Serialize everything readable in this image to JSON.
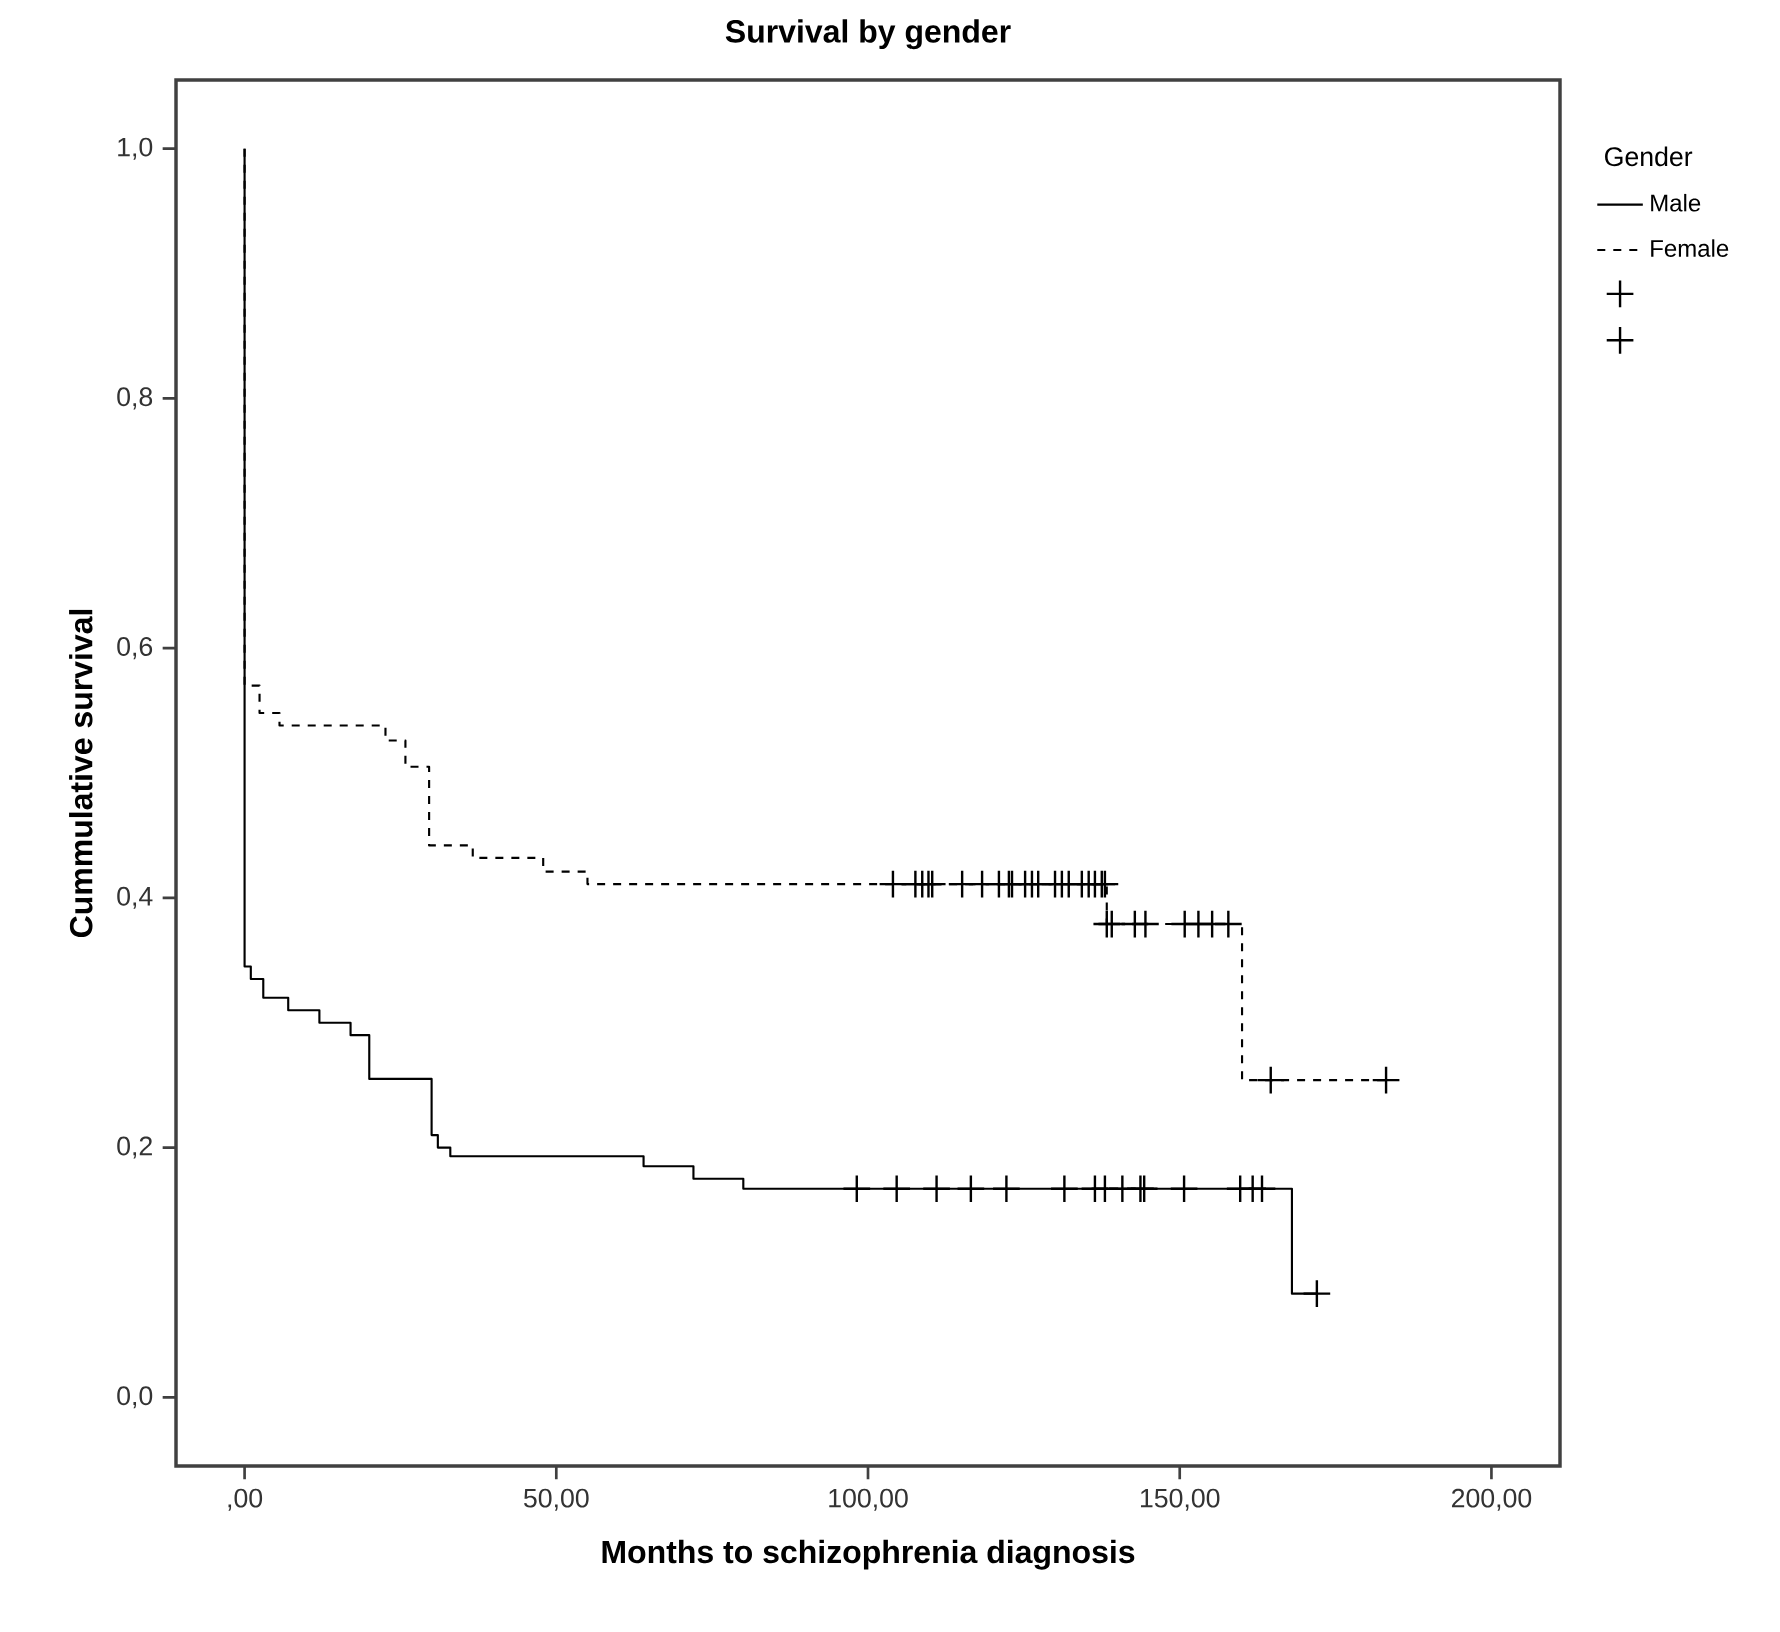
{
  "chart_data": {
    "type": "step",
    "title": "Survival by gender",
    "xlabel": "Months to schizophrenia diagnosis",
    "ylabel": "Cummulative survival",
    "legend_title": "Gender",
    "legend": "right",
    "grid": false,
    "xlim": [
      -11,
      211
    ],
    "ylim": [
      -0.055,
      1.055
    ],
    "xticks": [
      {
        "value": 0,
        "label": ",00"
      },
      {
        "value": 50,
        "label": "50,00"
      },
      {
        "value": 100,
        "label": "100,00"
      },
      {
        "value": 150,
        "label": "150,00"
      },
      {
        "value": 200,
        "label": "200,00"
      }
    ],
    "yticks": [
      {
        "value": 0,
        "label": "0,0"
      },
      {
        "value": 0.2,
        "label": "0,2"
      },
      {
        "value": 0.4,
        "label": "0,4"
      },
      {
        "value": 0.6,
        "label": "0,6"
      },
      {
        "value": 0.8,
        "label": "0,8"
      },
      {
        "value": 1,
        "label": "1,0"
      }
    ],
    "series": [
      {
        "name": "Male",
        "color": "#000000",
        "line_style": "solid",
        "marker": "none",
        "x": [
          0,
          0,
          1,
          3,
          7,
          12,
          17,
          20,
          30,
          31,
          33,
          64,
          72,
          80,
          168,
          172
        ],
        "values": [
          1,
          0.345,
          0.335,
          0.32,
          0.31,
          0.3,
          0.29,
          0.255,
          0.21,
          0.2,
          0.193,
          0.185,
          0.175,
          0.167,
          0.083,
          0.083
        ]
      },
      {
        "name": "Female",
        "color": "#000000",
        "line_style": "dashed",
        "marker": "none",
        "x": [
          0,
          0,
          2.4,
          5.6,
          22.6,
          25.8,
          29.6,
          36.6,
          47.9,
          55,
          138.3,
          160,
          183.1
        ],
        "values": [
          1,
          0.57,
          0.548,
          0.538,
          0.526,
          0.505,
          0.442,
          0.432,
          0.421,
          0.411,
          0.379,
          0.254,
          0.254
        ]
      },
      {
        "type": "scatter",
        "color": "#000000",
        "marker": "cross",
        "x": [
          98.2,
          104.6,
          111,
          116.5,
          122.2,
          131.5,
          136.4,
          138,
          140.8,
          143.7,
          144.3,
          150.7,
          159.7,
          161.7,
          163.2,
          172
        ],
        "values": [
          0.167,
          0.167,
          0.167,
          0.167,
          0.167,
          0.167,
          0.167,
          0.167,
          0.167,
          0.167,
          0.167,
          0.167,
          0.167,
          0.167,
          0.167,
          0.083
        ]
      },
      {
        "type": "scatter",
        "color": "#000000",
        "marker": "cross",
        "x": [
          104,
          107.6,
          108.7,
          109.7,
          110.3,
          115.1,
          118.3,
          121,
          122.6,
          123.1,
          125.2,
          126.3,
          127.3,
          130,
          131.1,
          132.2,
          134.3,
          135.4,
          136.4,
          137.5,
          138,
          138.3,
          139.1,
          142.8,
          144.5,
          150.8,
          153,
          155.2,
          157.8,
          164.6,
          183.1
        ],
        "values": [
          0.411,
          0.411,
          0.411,
          0.411,
          0.411,
          0.411,
          0.411,
          0.411,
          0.411,
          0.411,
          0.411,
          0.411,
          0.411,
          0.411,
          0.411,
          0.411,
          0.411,
          0.411,
          0.411,
          0.411,
          0.411,
          0.379,
          0.379,
          0.379,
          0.379,
          0.379,
          0.379,
          0.379,
          0.379,
          0.254,
          0.254
        ]
      }
    ]
  }
}
